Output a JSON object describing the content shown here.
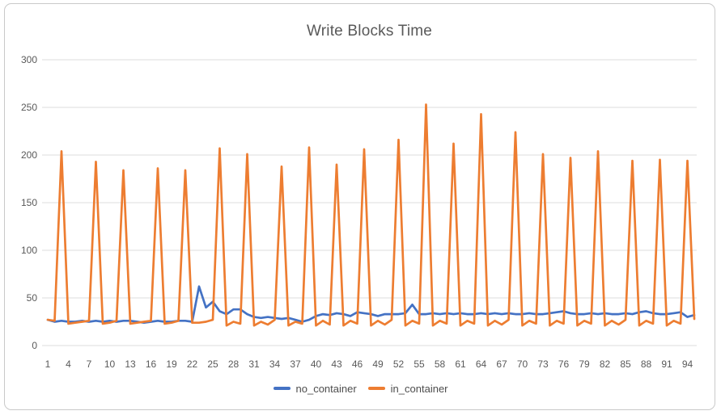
{
  "chart_data": {
    "type": "line",
    "title": "Write Blocks Time",
    "x_start": 1,
    "x_end": 95,
    "xticks": [
      1,
      4,
      7,
      10,
      13,
      16,
      19,
      22,
      25,
      28,
      31,
      34,
      37,
      40,
      43,
      46,
      49,
      52,
      55,
      58,
      61,
      64,
      67,
      70,
      73,
      76,
      79,
      82,
      85,
      88,
      91,
      94
    ],
    "yticks": [
      0,
      50,
      100,
      150,
      200,
      250,
      300
    ],
    "ylim": [
      0,
      300
    ],
    "grid": "horizontal-only",
    "legend_position": "bottom-center",
    "series": [
      {
        "name": "no_container",
        "color": "#4472C4",
        "values": [
          27,
          25,
          26,
          25,
          25,
          26,
          25,
          26,
          25,
          26,
          25,
          26,
          26,
          25,
          24,
          25,
          26,
          25,
          25,
          26,
          26,
          25,
          62,
          40,
          46,
          36,
          33,
          38,
          38,
          33,
          30,
          29,
          30,
          29,
          28,
          29,
          27,
          25,
          27,
          31,
          33,
          32,
          34,
          33,
          31,
          35,
          34,
          33,
          31,
          33,
          33,
          33,
          34,
          43,
          33,
          33,
          34,
          33,
          34,
          33,
          34,
          33,
          33,
          34,
          33,
          34,
          33,
          34,
          33,
          33,
          34,
          33,
          33,
          34,
          35,
          36,
          34,
          33,
          33,
          34,
          33,
          34,
          33,
          33,
          34,
          33,
          35,
          36,
          34,
          33,
          33,
          34,
          35,
          30,
          32
        ]
      },
      {
        "name": "in_container",
        "color": "#ED7D31",
        "values": [
          27,
          26,
          204,
          23,
          24,
          25,
          26,
          193,
          23,
          24,
          26,
          184,
          23,
          24,
          25,
          26,
          186,
          23,
          24,
          26,
          184,
          24,
          24,
          25,
          27,
          207,
          21,
          25,
          23,
          201,
          21,
          25,
          22,
          27,
          188,
          21,
          25,
          23,
          208,
          21,
          26,
          22,
          190,
          21,
          26,
          23,
          206,
          21,
          26,
          22,
          27,
          216,
          21,
          26,
          23,
          253,
          21,
          26,
          23,
          212,
          21,
          26,
          23,
          243,
          21,
          26,
          22,
          27,
          224,
          21,
          26,
          23,
          201,
          21,
          26,
          23,
          197,
          21,
          26,
          23,
          204,
          21,
          26,
          22,
          27,
          194,
          21,
          26,
          23,
          195,
          21,
          26,
          23,
          194,
          28
        ]
      }
    ]
  }
}
